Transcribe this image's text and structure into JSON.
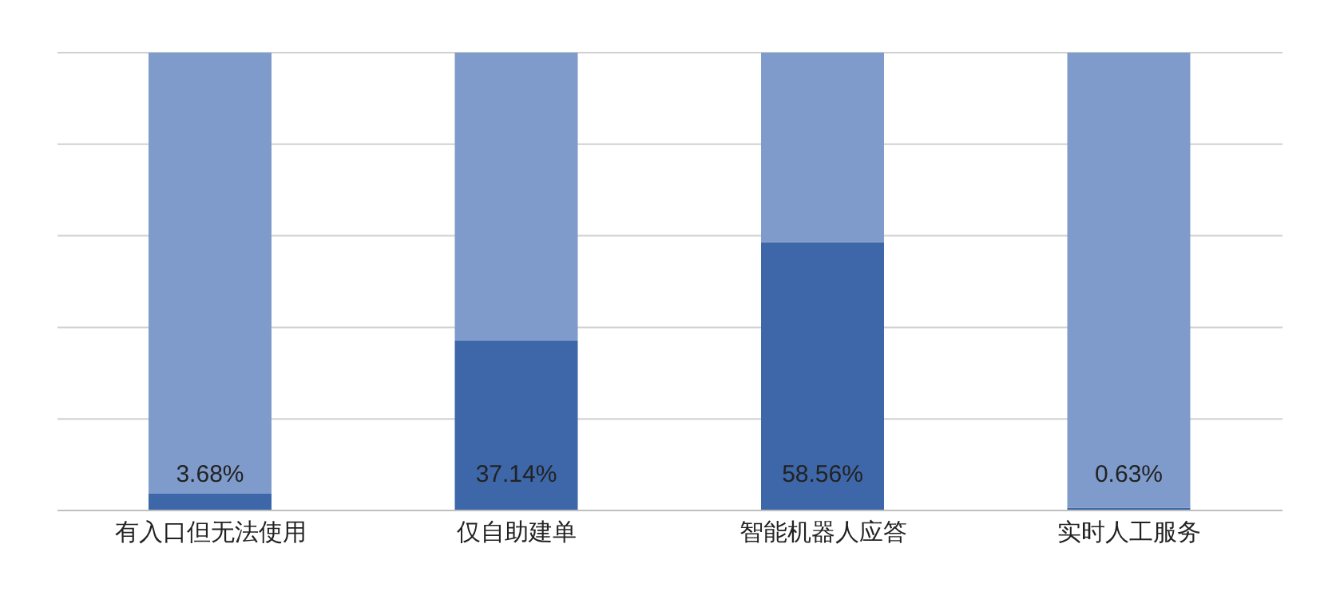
{
  "chart_data": {
    "type": "bar",
    "stacked": true,
    "categories": [
      "有入口但无法使用",
      "仅自助建单",
      "智能机器人应答",
      "实时人工服务"
    ],
    "series": [
      {
        "color": "#3d67a8",
        "values": [
          3.68,
          37.14,
          58.56,
          0.63
        ],
        "value_labels": [
          "3.68%",
          "37.14%",
          "58.56%",
          "0.63%"
        ]
      },
      {
        "color": "#7f9bcb",
        "values": [
          96.32,
          62.86,
          41.44,
          99.37
        ]
      }
    ],
    "ylim": [
      0,
      100
    ],
    "yticks": [
      {
        "value": 0,
        "label": null
      },
      {
        "value": 20,
        "label": null
      },
      {
        "value": 40,
        "label": null
      },
      {
        "value": 60,
        "label": null
      },
      {
        "value": 80,
        "label": null
      },
      {
        "value": 100,
        "label": null
      }
    ],
    "grid": "y",
    "tick_labels": "x"
  }
}
